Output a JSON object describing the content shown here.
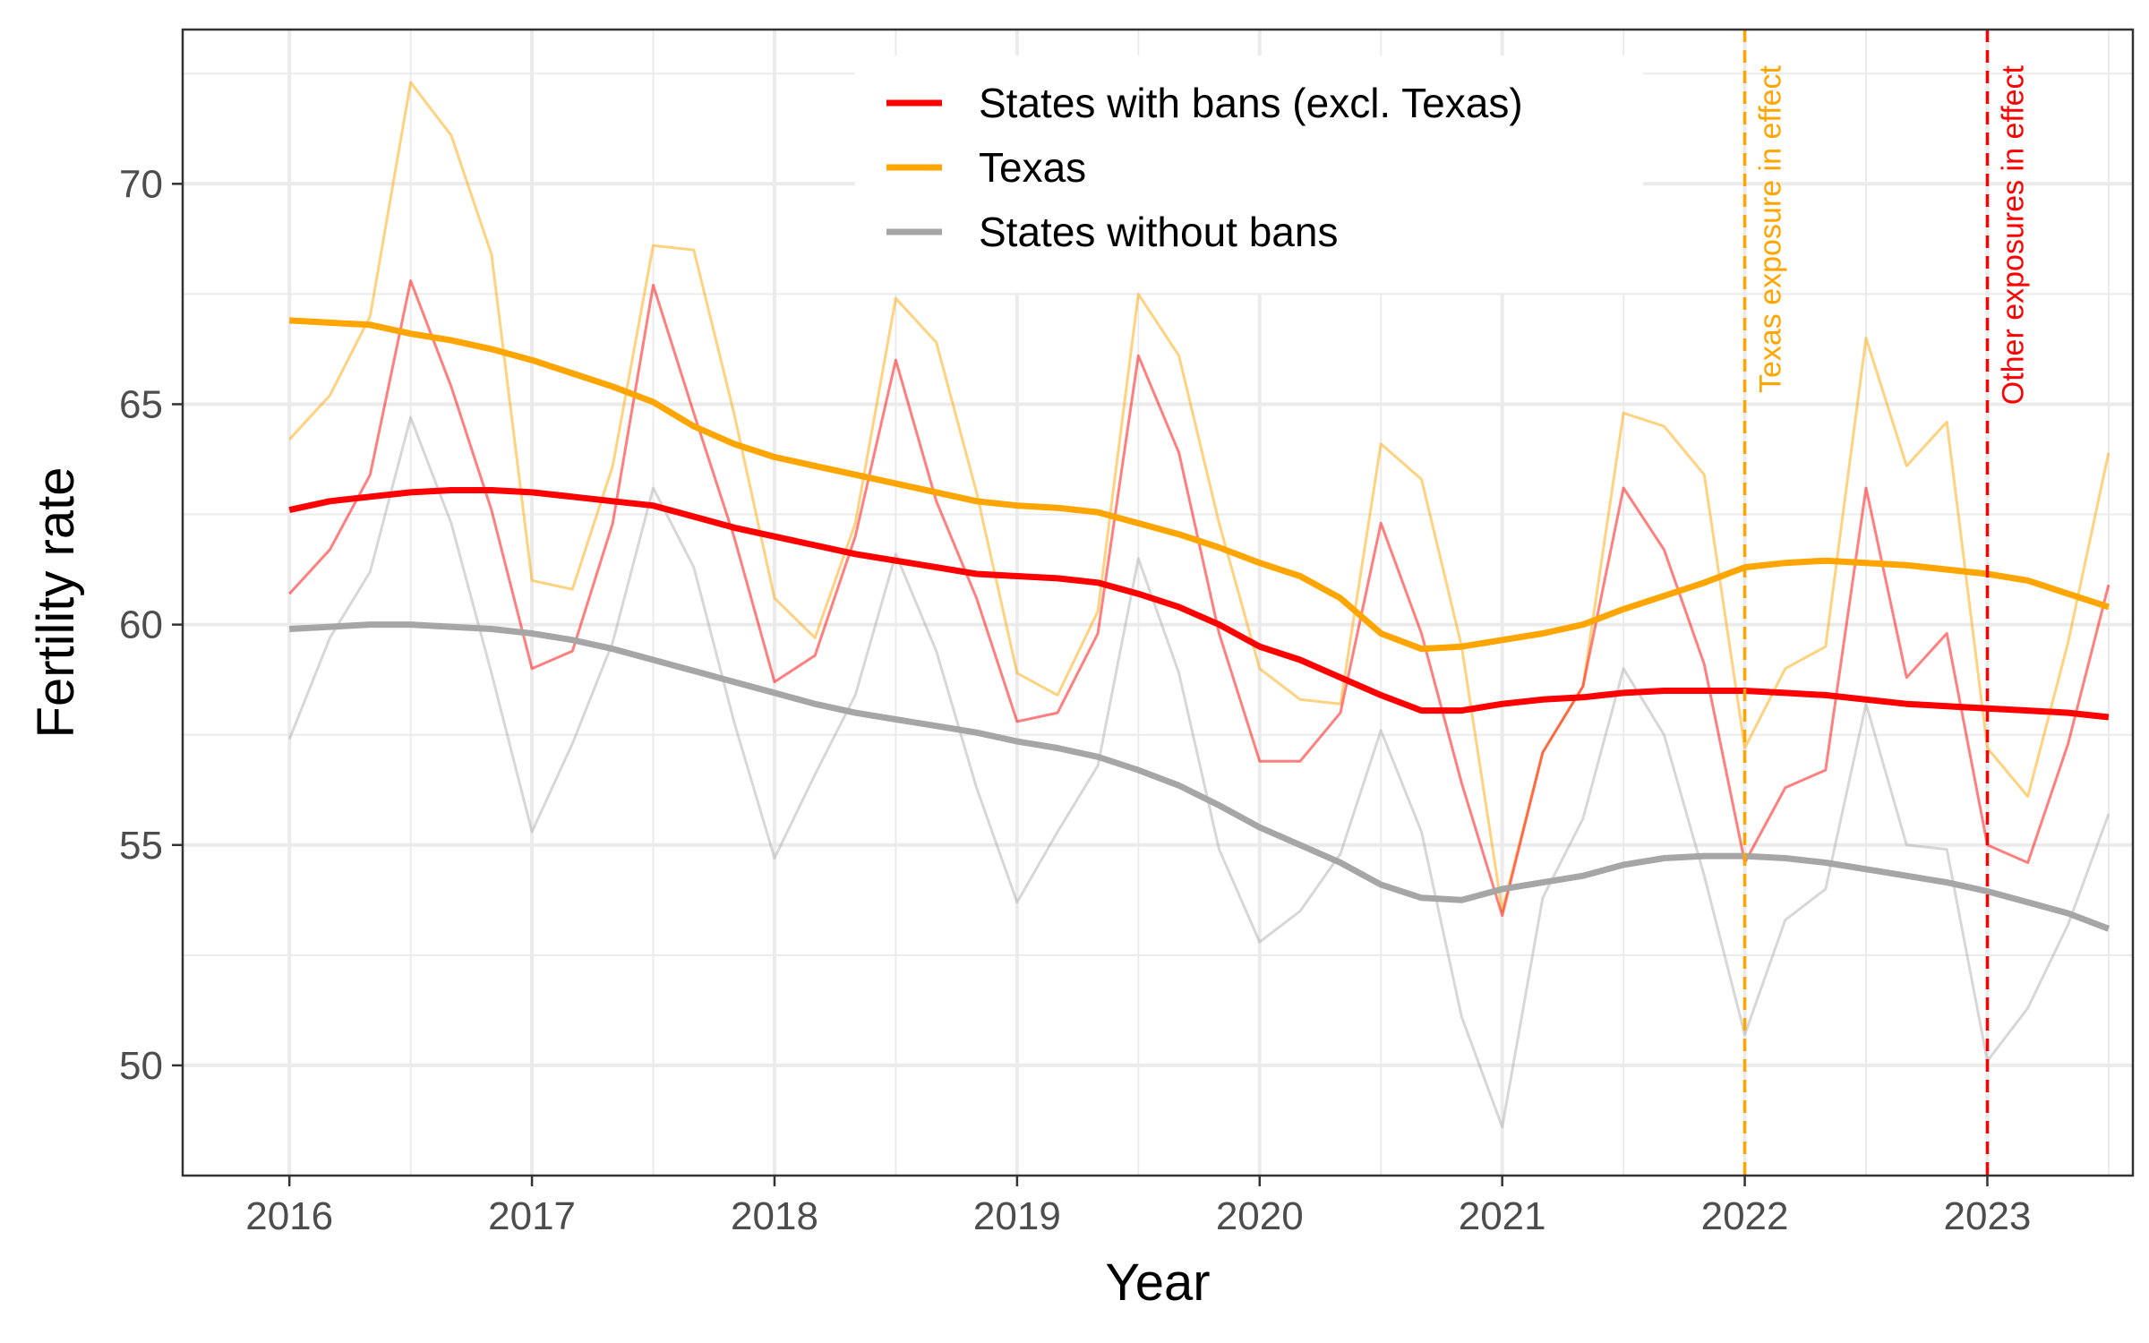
{
  "chart_data": {
    "type": "line",
    "xlabel": "Year",
    "ylabel": "Fertility rate",
    "xlim": [
      2015.56,
      2023.6
    ],
    "ylim": [
      47.5,
      73.5
    ],
    "x_ticks": [
      2016,
      2017,
      2018,
      2019,
      2020,
      2021,
      2022,
      2023
    ],
    "x_tick_labels": [
      "2016",
      "2017",
      "2018",
      "2019",
      "2020",
      "2021",
      "2022",
      "2023"
    ],
    "y_ticks": [
      50,
      55,
      60,
      65,
      70
    ],
    "y_tick_labels": [
      "50",
      "55",
      "60",
      "65",
      "70"
    ],
    "grid": true,
    "legend_position": "top-center",
    "x": [
      2016.0,
      2016.167,
      2016.333,
      2016.5,
      2016.667,
      2016.833,
      2017.0,
      2017.167,
      2017.333,
      2017.5,
      2017.667,
      2017.833,
      2018.0,
      2018.167,
      2018.333,
      2018.5,
      2018.667,
      2018.833,
      2019.0,
      2019.167,
      2019.333,
      2019.5,
      2019.667,
      2019.833,
      2020.0,
      2020.167,
      2020.333,
      2020.5,
      2020.667,
      2020.833,
      2021.0,
      2021.167,
      2021.333,
      2021.5,
      2021.667,
      2021.833,
      2022.0,
      2022.167,
      2022.333,
      2022.5,
      2022.667,
      2022.833,
      2023.0,
      2023.167,
      2023.333,
      2023.5
    ],
    "series": [
      {
        "name": "States with bans (excl. Texas)",
        "color": "#ff0000",
        "raw": [
          60.7,
          61.7,
          63.4,
          67.8,
          65.4,
          62.6,
          59.0,
          59.4,
          62.3,
          67.7,
          64.8,
          62.0,
          58.7,
          59.3,
          62.0,
          66.0,
          62.8,
          60.6,
          57.8,
          58.0,
          59.8,
          66.1,
          63.9,
          59.8,
          56.9,
          56.9,
          58.0,
          62.3,
          59.8,
          56.4,
          53.4,
          57.1,
          58.6,
          63.1,
          61.7,
          59.1,
          54.6,
          56.3,
          56.7,
          63.1,
          58.8,
          59.8,
          55.0,
          54.6,
          57.3,
          60.9
        ],
        "trend": [
          62.6,
          62.8,
          62.9,
          63.0,
          63.05,
          63.05,
          63.0,
          62.9,
          62.8,
          62.7,
          62.45,
          62.2,
          62.0,
          61.8,
          61.6,
          61.45,
          61.3,
          61.15,
          61.1,
          61.05,
          60.95,
          60.7,
          60.4,
          60.0,
          59.5,
          59.2,
          58.8,
          58.4,
          58.05,
          58.05,
          58.2,
          58.3,
          58.35,
          58.45,
          58.5,
          58.5,
          58.5,
          58.45,
          58.4,
          58.3,
          58.2,
          58.15,
          58.1,
          58.05,
          58.0,
          57.9
        ]
      },
      {
        "name": "Texas",
        "color": "#ffa500",
        "raw": [
          64.2,
          65.2,
          67.0,
          72.3,
          71.1,
          68.4,
          61.0,
          60.8,
          63.6,
          68.6,
          68.5,
          64.8,
          60.6,
          59.7,
          62.3,
          67.4,
          66.4,
          63.0,
          58.9,
          58.4,
          60.3,
          67.5,
          66.1,
          62.3,
          59.0,
          58.3,
          58.2,
          64.1,
          63.3,
          59.5,
          53.5,
          57.1,
          58.6,
          64.8,
          64.5,
          63.4,
          57.2,
          59.0,
          59.5,
          66.5,
          63.6,
          64.6,
          57.2,
          56.1,
          59.6,
          63.9
        ],
        "trend": [
          66.9,
          66.85,
          66.8,
          66.6,
          66.45,
          66.25,
          66.0,
          65.7,
          65.4,
          65.05,
          64.5,
          64.1,
          63.8,
          63.6,
          63.4,
          63.2,
          63.0,
          62.8,
          62.7,
          62.65,
          62.55,
          62.3,
          62.05,
          61.75,
          61.4,
          61.1,
          60.6,
          59.8,
          59.45,
          59.5,
          59.65,
          59.8,
          60.0,
          60.35,
          60.65,
          60.95,
          61.3,
          61.4,
          61.45,
          61.4,
          61.35,
          61.25,
          61.15,
          61.0,
          60.7,
          60.4
        ]
      },
      {
        "name": "States without bans",
        "color": "#a6a6a6",
        "raw": [
          57.4,
          59.7,
          61.2,
          64.7,
          62.3,
          58.9,
          55.3,
          57.3,
          59.6,
          63.1,
          61.3,
          57.8,
          54.7,
          56.6,
          58.4,
          61.6,
          59.4,
          56.3,
          53.7,
          55.3,
          56.8,
          61.5,
          58.9,
          54.9,
          52.8,
          53.5,
          54.8,
          57.6,
          55.3,
          51.1,
          48.6,
          53.8,
          55.6,
          59.0,
          57.5,
          54.3,
          50.7,
          53.3,
          54.0,
          58.2,
          55.0,
          54.9,
          50.1,
          51.3,
          53.2,
          55.7
        ],
        "trend": [
          59.9,
          59.95,
          60.0,
          60.0,
          59.95,
          59.9,
          59.8,
          59.65,
          59.45,
          59.2,
          58.95,
          58.7,
          58.45,
          58.2,
          58.0,
          57.85,
          57.7,
          57.55,
          57.35,
          57.2,
          57.0,
          56.7,
          56.35,
          55.9,
          55.4,
          55.0,
          54.6,
          54.1,
          53.8,
          53.75,
          54.0,
          54.15,
          54.3,
          54.55,
          54.7,
          54.75,
          54.75,
          54.7,
          54.6,
          54.45,
          54.3,
          54.15,
          53.95,
          53.7,
          53.45,
          53.1
        ]
      }
    ],
    "vertical_lines": [
      {
        "x": 2022.0,
        "label": "Texas exposure in effect",
        "color": "#ffa500"
      },
      {
        "x": 2023.0,
        "label": "Other exposures in effect",
        "color": "#ff0000"
      }
    ]
  }
}
